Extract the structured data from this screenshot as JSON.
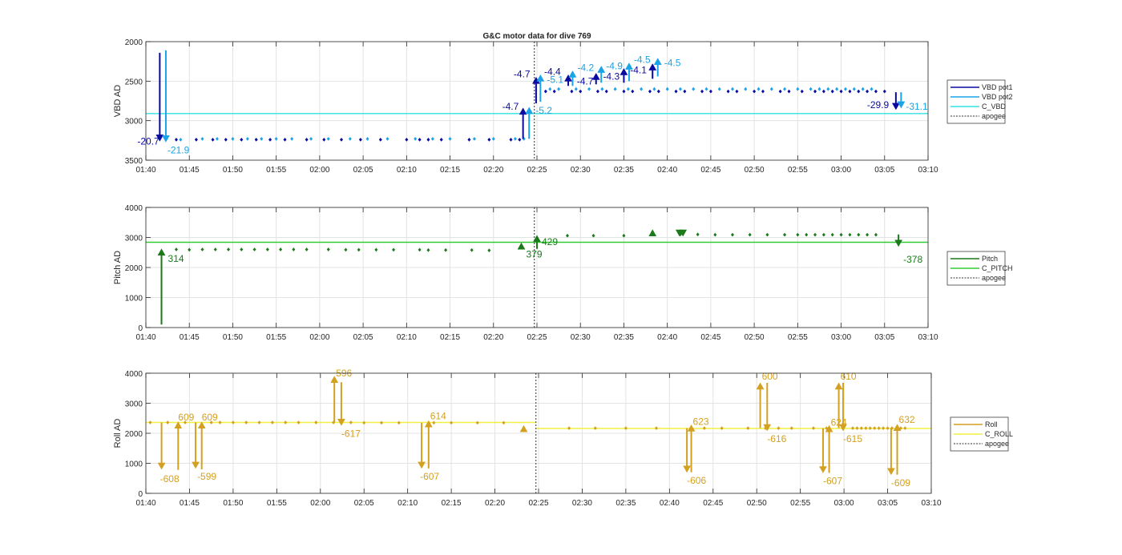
{
  "figure_title": "G&C motor data for dive 769",
  "x_ticks": [
    "01:40",
    "01:45",
    "01:50",
    "01:55",
    "02:00",
    "02:05",
    "02:10",
    "02:15",
    "02:20",
    "02:25",
    "02:30",
    "02:35",
    "02:40",
    "02:45",
    "02:50",
    "02:55",
    "03:00",
    "03:05",
    "03:10"
  ],
  "apogee_min": 144.7,
  "chart_data": [
    {
      "type": "scatter",
      "panel": "vbd",
      "ylabel": "VBD AD",
      "ylim": [
        2000,
        3500
      ],
      "y_reversed": true,
      "y_ticks": [
        "2000",
        "2500",
        "3000",
        "3500"
      ],
      "y_tick_values": [
        2000,
        2500,
        3000,
        3500
      ],
      "grid": true,
      "legend_placement": "outside-right",
      "legend": [
        {
          "label": "VBD pot1",
          "color": "#0a0aa0",
          "style": "solid"
        },
        {
          "label": "VBD pot2",
          "color": "#1aa3e8",
          "style": "solid"
        },
        {
          "label": "C_VBD",
          "color": "#33e0e0",
          "style": "solid"
        },
        {
          "label": "apogee",
          "color": "#333333",
          "style": "dotted"
        }
      ],
      "reference_line": {
        "name": "C_VBD",
        "y": 2910,
        "color": "#33e0e0"
      },
      "series": [
        {
          "name": "VBD pot1",
          "color": "#0a0aa0",
          "x": [
            103.5,
            105.8,
            107.7,
            109.2,
            111,
            112.7,
            114.3,
            116,
            118.5,
            120.5,
            122.5,
            124.7,
            127,
            130,
            131.5,
            132.5,
            134,
            137.2,
            139.5,
            142,
            143,
            146,
            147,
            149,
            150,
            152,
            153,
            155,
            156,
            158,
            159,
            161,
            162,
            164,
            165,
            167,
            168,
            170,
            171,
            173,
            174,
            175.5,
            177,
            178,
            179,
            180,
            181,
            182,
            183,
            184,
            185
          ],
          "y": [
            3240,
            3240,
            3240,
            3240,
            3240,
            3240,
            3240,
            3240,
            3240,
            3240,
            3240,
            3240,
            3240,
            3240,
            3240,
            3240,
            3240,
            3240,
            3240,
            3240,
            3240,
            2630,
            2630,
            2630,
            2630,
            2630,
            2630,
            2630,
            2630,
            2630,
            2630,
            2630,
            2630,
            2630,
            2630,
            2630,
            2630,
            2630,
            2630,
            2630,
            2630,
            2630,
            2630,
            2630,
            2630,
            2630,
            2630,
            2630,
            2630,
            2630,
            2630
          ]
        },
        {
          "name": "VBD pot2",
          "color": "#1aa3e8",
          "x": [
            104,
            106.5,
            108.2,
            110,
            111.7,
            113.3,
            115,
            116.8,
            119,
            121,
            123.5,
            125.5,
            127.8,
            131,
            133,
            135,
            137.8,
            140,
            142.5,
            143.5,
            146.5,
            147.5,
            149.5,
            151,
            152.5,
            154,
            155.5,
            157,
            158.5,
            160,
            161.5,
            163,
            164.5,
            166,
            167.5,
            169,
            170.5,
            172,
            173.5,
            175,
            176.5,
            177.5,
            178.5,
            179.5,
            180.5,
            181.5,
            182.5,
            183.5
          ],
          "y": [
            3240,
            3230,
            3230,
            3230,
            3230,
            3230,
            3230,
            3230,
            3230,
            3230,
            3230,
            3230,
            3230,
            3230,
            3230,
            3230,
            3230,
            3230,
            3230,
            3230,
            2600,
            2600,
            2600,
            2600,
            2600,
            2600,
            2600,
            2600,
            2600,
            2600,
            2600,
            2600,
            2600,
            2600,
            2600,
            2600,
            2600,
            2600,
            2600,
            2600,
            2600,
            2600,
            2600,
            2600,
            2600,
            2600,
            2600,
            2600
          ]
        }
      ],
      "arrows": [
        {
          "x": 101.6,
          "from": 2140,
          "to": 3260,
          "color": "#0a0aa0",
          "label": "-20.7",
          "lx": -28,
          "ly": 4
        },
        {
          "x": 102.3,
          "from": 2110,
          "to": 3270,
          "color": "#1aa3e8",
          "label": "-21.9",
          "lx": 2,
          "ly": 14
        },
        {
          "x": 143.4,
          "from": 3230,
          "to": 2840,
          "color": "#0a0aa0",
          "label": "-4.7",
          "lx": -26,
          "ly": 2
        },
        {
          "x": 144.1,
          "from": 3230,
          "to": 2830,
          "color": "#1aa3e8",
          "label": "-5.2",
          "lx": 8,
          "ly": 8
        },
        {
          "x": 144.9,
          "from": 2780,
          "to": 2450,
          "color": "#0a0aa0",
          "label": "-4.7",
          "lx": -28,
          "ly": 0
        },
        {
          "x": 145.4,
          "from": 2760,
          "to": 2420,
          "color": "#1aa3e8",
          "label": "-5.1",
          "lx": 8,
          "ly": 10
        },
        {
          "x": 148.6,
          "from": 2560,
          "to": 2420,
          "color": "#0a0aa0",
          "label": "-4.4",
          "lx": -30,
          "ly": 0
        },
        {
          "x": 149.1,
          "from": 2560,
          "to": 2370,
          "color": "#1aa3e8",
          "label": "-4.2",
          "lx": 6,
          "ly": 0
        },
        {
          "x": 151.8,
          "from": 2540,
          "to": 2400,
          "color": "#0a0aa0",
          "label": "-4.7",
          "lx": -24,
          "ly": 14
        },
        {
          "x": 152.4,
          "from": 2520,
          "to": 2310,
          "color": "#1aa3e8",
          "label": "-4.9",
          "lx": 6,
          "ly": 4
        },
        {
          "x": 155,
          "from": 2520,
          "to": 2340,
          "color": "#0a0aa0",
          "label": "-4.3",
          "lx": -26,
          "ly": 14
        },
        {
          "x": 155.6,
          "from": 2500,
          "to": 2270,
          "color": "#1aa3e8",
          "label": "-4.5",
          "lx": 6,
          "ly": 0
        },
        {
          "x": 158.3,
          "from": 2470,
          "to": 2280,
          "color": "#0a0aa0",
          "label": "-4.1",
          "lx": -28,
          "ly": 12
        },
        {
          "x": 158.9,
          "from": 2440,
          "to": 2210,
          "color": "#1aa3e8",
          "label": "-4.5",
          "lx": 8,
          "ly": 10
        },
        {
          "x": 186.3,
          "from": 2640,
          "to": 2860,
          "color": "#0a0aa0",
          "label": "-29.9",
          "lx": -36,
          "ly": -2
        },
        {
          "x": 186.9,
          "from": 2640,
          "to": 2840,
          "color": "#1aa3e8",
          "label": "-31.1",
          "lx": 6,
          "ly": 2
        }
      ]
    },
    {
      "type": "scatter",
      "panel": "pitch",
      "ylabel": "Pitch AD",
      "ylim": [
        0,
        4000
      ],
      "y_reversed": false,
      "y_ticks": [
        "0",
        "1000",
        "2000",
        "3000",
        "4000"
      ],
      "y_tick_values": [
        0,
        1000,
        2000,
        3000,
        4000
      ],
      "grid": true,
      "legend_placement": "outside-right",
      "legend": [
        {
          "label": "Pitch",
          "color": "#1a7a1a",
          "style": "solid"
        },
        {
          "label": "C_PITCH",
          "color": "#33cc33",
          "style": "solid"
        },
        {
          "label": "apogee",
          "color": "#333333",
          "style": "dotted"
        }
      ],
      "reference_line": {
        "name": "C_PITCH",
        "y": 2840,
        "color": "#33cc33"
      },
      "series": [
        {
          "name": "Pitch",
          "color": "#1a7a1a",
          "x": [
            103.5,
            105,
            106.5,
            108,
            109.5,
            111,
            112.5,
            114,
            115.5,
            117,
            118.5,
            121,
            123,
            124.5,
            126.5,
            128.5,
            131.5,
            132.5,
            134.5,
            137.5,
            139.5,
            148.5,
            151.5,
            155,
            161.5,
            163.5,
            165.5,
            167.5,
            169.5,
            171.5,
            173.5,
            175,
            176,
            177,
            178,
            179,
            180,
            181,
            182,
            183,
            184
          ],
          "y": [
            2600,
            2590,
            2600,
            2600,
            2600,
            2600,
            2600,
            2600,
            2600,
            2600,
            2600,
            2600,
            2590,
            2590,
            2590,
            2590,
            2590,
            2580,
            2580,
            2580,
            2570,
            3060,
            3060,
            3060,
            3100,
            3100,
            3090,
            3090,
            3090,
            3090,
            3090,
            3090,
            3090,
            3090,
            3090,
            3090,
            3090,
            3090,
            3090,
            3090,
            3090
          ]
        }
      ],
      "arrows": [
        {
          "x": 101.8,
          "from": 100,
          "to": 2620,
          "color": "#1a7a1a",
          "label": "314",
          "lx": 8,
          "ly": 16
        },
        {
          "x": 143.2,
          "from": 2620,
          "to": 2820,
          "color": "#1a7a1a",
          "label": "379",
          "lx": 6,
          "ly": 18
        },
        {
          "x": 145,
          "from": 2620,
          "to": 3070,
          "color": "#1a7a1a",
          "label": "429",
          "lx": 6,
          "ly": 12
        },
        {
          "x": 158.3,
          "from": 3100,
          "to": 3260,
          "color": "#1a7a1a",
          "label": "",
          "lx": 0,
          "ly": 0
        },
        {
          "x": 161.4,
          "from": 3160,
          "to": 3040,
          "color": "#1a7a1a",
          "label": "",
          "lx": 0,
          "ly": 0
        },
        {
          "x": 161.8,
          "from": 3160,
          "to": 3040,
          "color": "#1a7a1a",
          "label": "",
          "lx": 0,
          "ly": 0
        },
        {
          "x": 186.6,
          "from": 3100,
          "to": 2700,
          "color": "#1a7a1a",
          "label": "-378",
          "lx": 6,
          "ly": 20
        }
      ]
    },
    {
      "type": "scatter",
      "panel": "roll",
      "ylabel": "Roll AD",
      "ylim": [
        0,
        4000
      ],
      "y_reversed": false,
      "y_ticks": [
        "0",
        "1000",
        "2000",
        "3000",
        "4000"
      ],
      "y_tick_values": [
        0,
        1000,
        2000,
        3000,
        4000
      ],
      "grid": true,
      "legend_placement": "outside-right",
      "legend": [
        {
          "label": "Roll",
          "color": "#d4a020",
          "style": "solid"
        },
        {
          "label": "C_ROLL",
          "color": "#f0f040",
          "style": "solid"
        },
        {
          "label": "apogee",
          "color": "#333333",
          "style": "dotted"
        }
      ],
      "reference_lines": [
        {
          "name": "C_ROLL",
          "y": 2360,
          "x_from": 100,
          "x_to": 144.7,
          "color": "#f0f040"
        },
        {
          "name": "C_ROLL",
          "y": 2160,
          "x_from": 144.7,
          "x_to": 190,
          "color": "#f0f040"
        }
      ],
      "series": [
        {
          "name": "Roll",
          "color": "#d4a020",
          "x": [
            100.5,
            102.5,
            104.5,
            107.5,
            108.5,
            110,
            111.5,
            113,
            114.5,
            116,
            117.5,
            119.5,
            121.5,
            123.5,
            125,
            127,
            129,
            133,
            135,
            138,
            141,
            148.5,
            151.5,
            155,
            158.5,
            164,
            166,
            169,
            171,
            172.5,
            174,
            176.5,
            178,
            181,
            181.5,
            182,
            182.5,
            183,
            183.5,
            184,
            184.5,
            185,
            185.5,
            186.5,
            187
          ],
          "y": [
            2360,
            2360,
            2360,
            2360,
            2360,
            2360,
            2360,
            2360,
            2360,
            2360,
            2360,
            2360,
            2360,
            2360,
            2350,
            2350,
            2350,
            2350,
            2350,
            2350,
            2350,
            2170,
            2170,
            2170,
            2170,
            2170,
            2170,
            2170,
            2170,
            2170,
            2170,
            2170,
            2170,
            2170,
            2170,
            2170,
            2170,
            2170,
            2170,
            2170,
            2170,
            2170,
            2170,
            2170,
            2170
          ]
        }
      ],
      "arrows": [
        {
          "x": 101.8,
          "from": 2360,
          "to": 800,
          "color": "#d4a020",
          "label": "-608",
          "lx": -2,
          "ly": 16
        },
        {
          "x": 103.7,
          "from": 780,
          "to": 2380,
          "color": "#d4a020",
          "label": "609",
          "lx": 0,
          "ly": -2
        },
        {
          "x": 105.7,
          "from": 2360,
          "to": 830,
          "color": "#d4a020",
          "label": "-599",
          "lx": 2,
          "ly": 14
        },
        {
          "x": 106.4,
          "from": 800,
          "to": 2380,
          "color": "#d4a020",
          "label": "609",
          "lx": 0,
          "ly": -2
        },
        {
          "x": 121.6,
          "from": 2370,
          "to": 3900,
          "color": "#d4a020",
          "label": "596",
          "lx": 2,
          "ly": 0
        },
        {
          "x": 122.4,
          "from": 3700,
          "to": 2260,
          "color": "#d4a020",
          "label": "-617",
          "lx": 0,
          "ly": 14
        },
        {
          "x": 131.6,
          "from": 2350,
          "to": 830,
          "color": "#d4a020",
          "label": "-607",
          "lx": -2,
          "ly": 14
        },
        {
          "x": 132.4,
          "from": 830,
          "to": 2420,
          "color": "#d4a020",
          "label": "614",
          "lx": 2,
          "ly": -2
        },
        {
          "x": 143.3,
          "from": 2120,
          "to": 2260,
          "color": "#d4a020",
          "label": "",
          "lx": 0,
          "ly": 0
        },
        {
          "x": 162,
          "from": 2170,
          "to": 700,
          "color": "#d4a020",
          "label": "-606",
          "lx": 0,
          "ly": 14
        },
        {
          "x": 162.5,
          "from": 700,
          "to": 2280,
          "color": "#d4a020",
          "label": "623",
          "lx": 2,
          "ly": 0
        },
        {
          "x": 170.4,
          "from": 2170,
          "to": 3680,
          "color": "#d4a020",
          "label": "600",
          "lx": 2,
          "ly": -4
        },
        {
          "x": 171.2,
          "from": 3680,
          "to": 2080,
          "color": "#d4a020",
          "label": "-616",
          "lx": 0,
          "ly": 14
        },
        {
          "x": 177.6,
          "from": 2170,
          "to": 680,
          "color": "#d4a020",
          "label": "-607",
          "lx": 0,
          "ly": 14
        },
        {
          "x": 178.3,
          "from": 680,
          "to": 2260,
          "color": "#d4a020",
          "label": "624",
          "lx": 2,
          "ly": 0
        },
        {
          "x": 179.4,
          "from": 2170,
          "to": 3680,
          "color": "#d4a020",
          "label": "610",
          "lx": 2,
          "ly": -4
        },
        {
          "x": 179.9,
          "from": 3680,
          "to": 2080,
          "color": "#d4a020",
          "label": "-615",
          "lx": 0,
          "ly": 14
        },
        {
          "x": 185.4,
          "from": 2170,
          "to": 620,
          "color": "#d4a020",
          "label": "-609",
          "lx": 0,
          "ly": 14
        },
        {
          "x": 186.1,
          "from": 620,
          "to": 2300,
          "color": "#d4a020",
          "label": "632",
          "lx": 2,
          "ly": -2
        }
      ]
    }
  ]
}
